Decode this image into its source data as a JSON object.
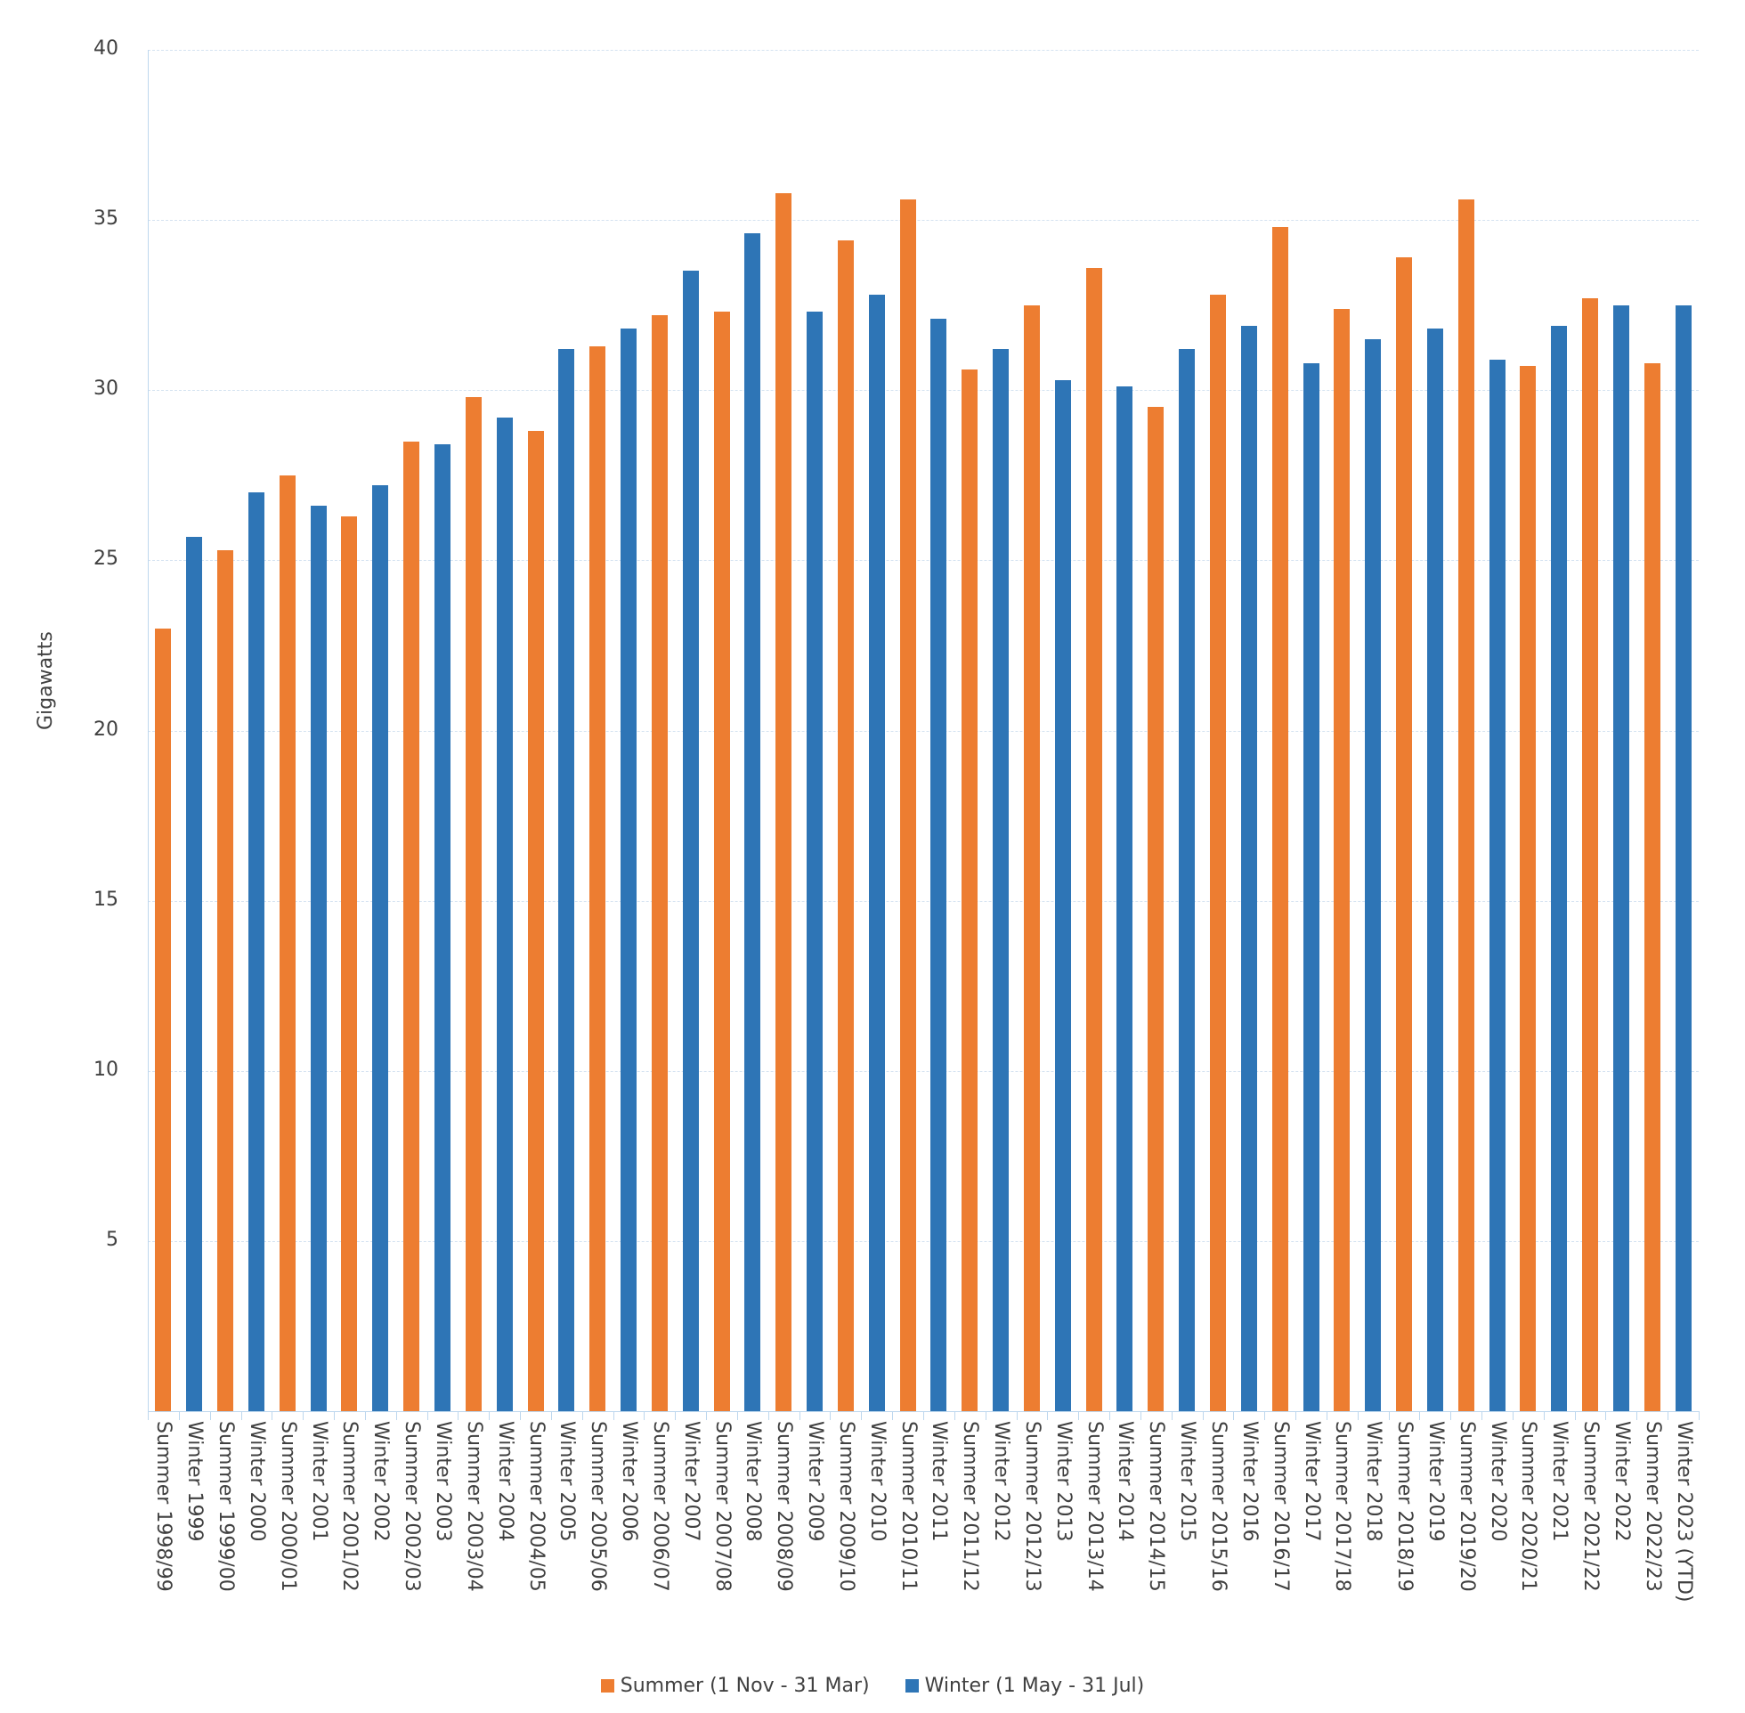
{
  "chart_data": {
    "type": "bar",
    "title": "",
    "xlabel": "",
    "ylabel": "Gigawatts",
    "ylim": [
      0,
      40
    ],
    "yticks": [
      5,
      10,
      15,
      20,
      25,
      30,
      35,
      40
    ],
    "grid": true,
    "legend_position": "bottom",
    "categories": [
      "Summer 1998/99",
      "Winter 1999",
      "Summer 1999/00",
      "Winter 2000",
      "Summer 2000/01",
      "Winter 2001",
      "Summer 2001/02",
      "Winter 2002",
      "Summer 2002/03",
      "Winter 2003",
      "Summer 2003/04",
      "Winter 2004",
      "Summer 2004/05",
      "Winter 2005",
      "Summer 2005/06",
      "Winter 2006",
      "Summer 2006/07",
      "Winter 2007",
      "Summer 2007/08",
      "Winter 2008",
      "Summer 2008/09",
      "Winter 2009",
      "Summer 2009/10",
      "Winter 2010",
      "Summer 2010/11",
      "Winter 2011",
      "Summer 2011/12",
      "Winter 2012",
      "Summer 2012/13",
      "Winter 2013",
      "Summer 2013/14",
      "Winter 2014",
      "Summer 2014/15",
      "Winter 2015",
      "Summer 2015/16",
      "Winter 2016",
      "Summer 2016/17",
      "Winter 2017",
      "Summer 2017/18",
      "Winter 2018",
      "Summer 2018/19",
      "Winter 2019",
      "Summer 2019/20",
      "Winter 2020",
      "Summer 2020/21",
      "Winter 2021",
      "Summer 2021/22",
      "Winter 2022",
      "Summer 2022/23",
      "Winter 2023 (YTD)"
    ],
    "values": [
      23.0,
      25.7,
      25.3,
      27.0,
      27.5,
      26.6,
      26.3,
      27.2,
      28.5,
      28.4,
      29.8,
      29.2,
      28.8,
      31.2,
      31.3,
      31.8,
      32.2,
      33.5,
      32.3,
      34.6,
      35.8,
      32.3,
      34.4,
      32.8,
      35.6,
      32.1,
      30.6,
      31.2,
      32.5,
      30.3,
      33.6,
      30.1,
      29.5,
      31.2,
      32.8,
      31.9,
      34.8,
      30.8,
      32.4,
      31.5,
      33.9,
      31.8,
      35.6,
      30.9,
      30.7,
      31.9,
      32.7,
      32.5,
      30.8,
      32.5
    ],
    "series_of_category": [
      "summer",
      "winter",
      "summer",
      "winter",
      "summer",
      "winter",
      "summer",
      "winter",
      "summer",
      "winter",
      "summer",
      "winter",
      "summer",
      "winter",
      "summer",
      "winter",
      "summer",
      "winter",
      "summer",
      "winter",
      "summer",
      "winter",
      "summer",
      "winter",
      "summer",
      "winter",
      "summer",
      "winter",
      "summer",
      "winter",
      "summer",
      "winter",
      "summer",
      "winter",
      "summer",
      "winter",
      "summer",
      "winter",
      "summer",
      "winter",
      "summer",
      "winter",
      "summer",
      "winter",
      "summer",
      "winter",
      "summer",
      "winter",
      "summer",
      "winter"
    ],
    "series": [
      {
        "key": "summer",
        "name": "Summer (1 Nov - 31 Mar)",
        "color": "#ED7D31"
      },
      {
        "key": "winter",
        "name": "Winter (1 May - 31 Jul)",
        "color": "#2E75B6"
      }
    ]
  },
  "legend": {
    "summer_label": "Summer (1 Nov - 31 Mar)",
    "winter_label": "Winter (1 May - 31 Jul)"
  },
  "axis": {
    "ylabel": "Gigawatts"
  }
}
